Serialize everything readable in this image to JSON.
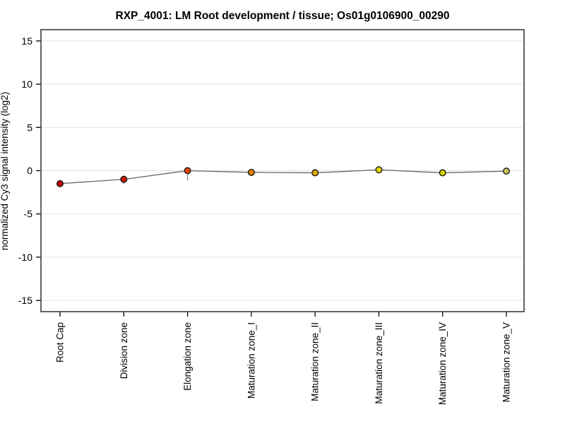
{
  "chart_data": {
    "type": "line",
    "title": "RXP_4001: LM Root development / tissue; Os01g0106900_00290",
    "ylabel": "normalized Cy3 signal intensity (log2)",
    "xlabel": "",
    "categories": [
      "Root Cap",
      "Division zone",
      "Elongation zone",
      "Maturation zone_I",
      "Maturation zone_II",
      "Maturation zone_III",
      "Maturation zone_IV",
      "Maturation zone_V"
    ],
    "series": [
      {
        "name": "normalized Cy3 signal intensity (log2)",
        "values": [
          -1.5,
          -1.0,
          0.0,
          -0.2,
          -0.25,
          0.1,
          -0.25,
          -0.05
        ],
        "errors_low": [
          0.15,
          0.55,
          1.15,
          0.3,
          0.25,
          0.2,
          0.25,
          0.15
        ],
        "errors_high": [
          0.15,
          0.45,
          0.3,
          0.25,
          0.2,
          0.15,
          0.2,
          0.15
        ],
        "point_colors": [
          "#c40000",
          "#c81800",
          "#e04800",
          "#e88000",
          "#dcaa00",
          "#e0d400",
          "#d8d200",
          "#c6c25a"
        ]
      }
    ],
    "yticks": [
      15,
      10,
      5,
      0,
      -5,
      -10,
      -15
    ],
    "ylim": [
      -16.3,
      16.3
    ],
    "grid": true,
    "legend": "none",
    "colors": {
      "line": "#666666",
      "error_bar": "#8a8a8a",
      "grid": "#e2e2e2",
      "frame": "#3c3c3c",
      "tick": "#000000",
      "marker_outline": "#1a1a1a",
      "text": "#000000",
      "background": "#ffffff"
    }
  }
}
